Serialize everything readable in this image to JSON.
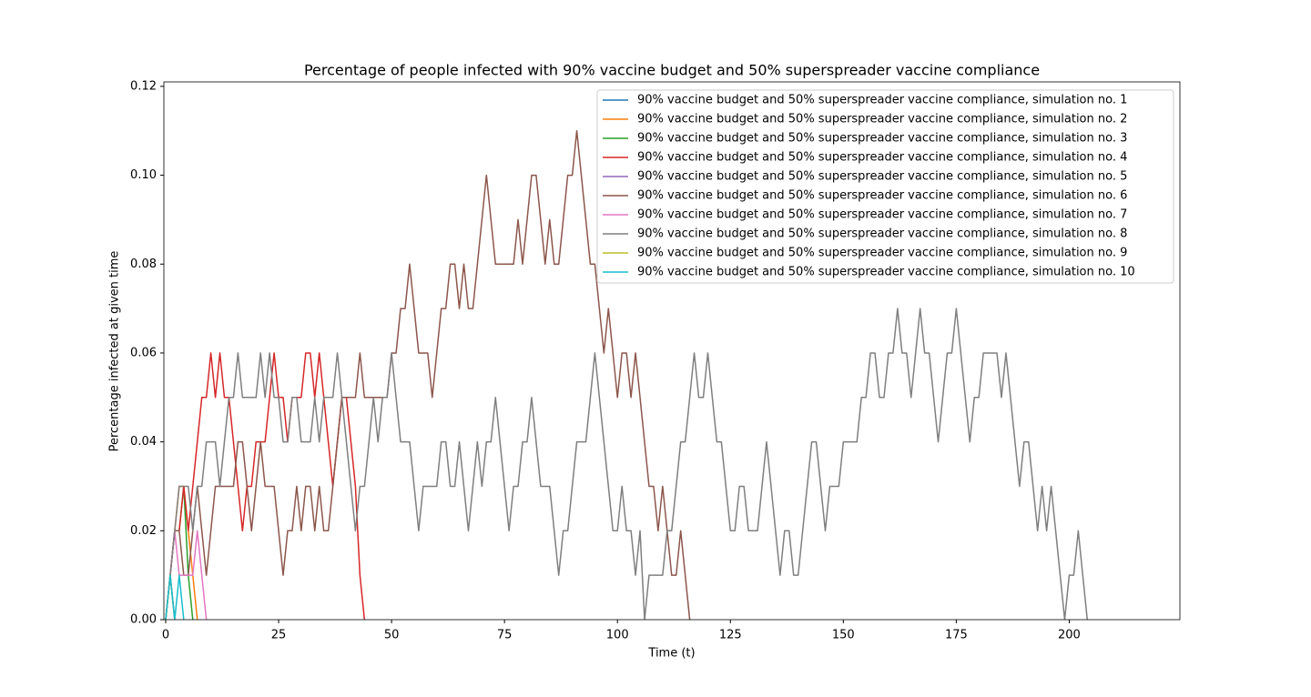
{
  "chart_data": {
    "type": "line",
    "title": "Percentage of people infected with 90% vaccine budget and 50% superspreader vaccine compliance",
    "xlabel": "Time (t)",
    "ylabel": "Percentage infected at given time",
    "xlim": [
      -0.4,
      224.5
    ],
    "ylim": [
      0,
      0.121
    ],
    "xticks": [
      0,
      25,
      50,
      75,
      100,
      125,
      150,
      175,
      200
    ],
    "yticks": [
      {
        "value": 0,
        "label": "0.00"
      },
      0.02,
      0.04,
      0.06,
      0.08,
      {
        "value": 0.1,
        "label": "0.10"
      },
      {
        "value": 0.12,
        "label": "0.12"
      }
    ],
    "legend": "upper right",
    "series": [
      {
        "name": "90% vaccine budget and 50% superspreader vaccine compliance, simulation no. 1",
        "color": "#1f77b4",
        "x": [
          0,
          1,
          2
        ],
        "values": [
          0,
          0.01,
          0
        ]
      },
      {
        "name": "90% vaccine budget and 50% superspreader vaccine compliance, simulation no. 2",
        "color": "#ff7f0e",
        "x": [
          0,
          1,
          2,
          3,
          4,
          5,
          6,
          7
        ],
        "values": [
          0,
          0.01,
          0.02,
          0.03,
          0.03,
          0.02,
          0.01,
          0
        ]
      },
      {
        "name": "90% vaccine budget and 50% superspreader vaccine compliance, simulation no. 3",
        "color": "#2ca02c",
        "x": [
          0,
          1,
          2,
          3,
          4,
          5,
          6
        ],
        "values": [
          0,
          0.01,
          0.02,
          0.02,
          0.03,
          0.01,
          0
        ]
      },
      {
        "name": "90% vaccine budget and 50% superspreader vaccine compliance, simulation no. 4",
        "color": "#d62728",
        "x": [
          0,
          1,
          2,
          3,
          4,
          5,
          6,
          7,
          8,
          9,
          10,
          11,
          12,
          13,
          14,
          15,
          16,
          17,
          18,
          19,
          20,
          21,
          22,
          23,
          24,
          25,
          26,
          27,
          28,
          29,
          30,
          31,
          32,
          33,
          34,
          35,
          36,
          37,
          38,
          39,
          40,
          41,
          42,
          43,
          44
        ],
        "values": [
          0,
          0.01,
          0.02,
          0.02,
          0.03,
          0.02,
          0.03,
          0.04,
          0.05,
          0.05,
          0.06,
          0.05,
          0.06,
          0.05,
          0.05,
          0.04,
          0.03,
          0.02,
          0.03,
          0.03,
          0.04,
          0.04,
          0.04,
          0.05,
          0.06,
          0.05,
          0.05,
          0.04,
          0.05,
          0.05,
          0.05,
          0.06,
          0.06,
          0.05,
          0.06,
          0.05,
          0.04,
          0.03,
          0.04,
          0.05,
          0.05,
          0.04,
          0.03,
          0.01,
          0
        ]
      },
      {
        "name": "90% vaccine budget and 50% superspreader vaccine compliance, simulation no. 5",
        "color": "#9467bd",
        "x": [
          0,
          1,
          2
        ],
        "values": [
          0,
          0.01,
          0
        ]
      },
      {
        "name": "90% vaccine budget and 50% superspreader vaccine compliance, simulation no. 6",
        "color": "#8c564b",
        "x": [
          0,
          1,
          2,
          3,
          4,
          5,
          6,
          7,
          8,
          9,
          10,
          11,
          12,
          13,
          14,
          15,
          16,
          17,
          18,
          19,
          20,
          21,
          22,
          23,
          24,
          25,
          26,
          27,
          28,
          29,
          30,
          31,
          32,
          33,
          34,
          35,
          36,
          37,
          38,
          39,
          40,
          41,
          42,
          43,
          44,
          45,
          46,
          47,
          48,
          49,
          50,
          51,
          52,
          53,
          54,
          55,
          56,
          57,
          58,
          59,
          60,
          61,
          62,
          63,
          64,
          65,
          66,
          67,
          68,
          69,
          70,
          71,
          72,
          73,
          74,
          75,
          76,
          77,
          78,
          79,
          80,
          81,
          82,
          83,
          84,
          85,
          86,
          87,
          88,
          89,
          90,
          91,
          92,
          93,
          94,
          95,
          96,
          97,
          98,
          99,
          100,
          101,
          102,
          103,
          104,
          105,
          106,
          107,
          108,
          109,
          110,
          111,
          112,
          113,
          114,
          115,
          116
        ],
        "values": [
          0,
          0.01,
          0.02,
          0.02,
          0.01,
          0.01,
          0.02,
          0.03,
          0.02,
          0.01,
          0.02,
          0.03,
          0.03,
          0.03,
          0.03,
          0.03,
          0.04,
          0.04,
          0.03,
          0.02,
          0.03,
          0.04,
          0.03,
          0.03,
          0.03,
          0.02,
          0.01,
          0.02,
          0.02,
          0.03,
          0.02,
          0.03,
          0.03,
          0.02,
          0.03,
          0.02,
          0.02,
          0.03,
          0.04,
          0.05,
          0.05,
          0.05,
          0.05,
          0.06,
          0.05,
          0.05,
          0.05,
          0.05,
          0.05,
          0.05,
          0.06,
          0.06,
          0.07,
          0.07,
          0.08,
          0.07,
          0.06,
          0.06,
          0.06,
          0.05,
          0.06,
          0.07,
          0.07,
          0.08,
          0.08,
          0.07,
          0.08,
          0.07,
          0.07,
          0.08,
          0.09,
          0.1,
          0.09,
          0.08,
          0.08,
          0.08,
          0.08,
          0.08,
          0.09,
          0.08,
          0.09,
          0.1,
          0.1,
          0.09,
          0.08,
          0.09,
          0.08,
          0.08,
          0.09,
          0.1,
          0.1,
          0.11,
          0.1,
          0.09,
          0.08,
          0.08,
          0.07,
          0.06,
          0.07,
          0.06,
          0.05,
          0.06,
          0.06,
          0.05,
          0.06,
          0.05,
          0.04,
          0.03,
          0.03,
          0.02,
          0.03,
          0.02,
          0.01,
          0.01,
          0.02,
          0.01,
          0
        ]
      },
      {
        "name": "90% vaccine budget and 50% superspreader vaccine compliance, simulation no. 7",
        "color": "#e377c2",
        "x": [
          0,
          1,
          2,
          3,
          4,
          5,
          6,
          7,
          8,
          9
        ],
        "values": [
          0,
          0.01,
          0.02,
          0.01,
          0.01,
          0.01,
          0.01,
          0.02,
          0.01,
          0
        ]
      },
      {
        "name": "90% vaccine budget and 50% superspreader vaccine compliance, simulation no. 8",
        "color": "#7f7f7f",
        "x": [
          0,
          1,
          2,
          3,
          4,
          5,
          6,
          7,
          8,
          9,
          10,
          11,
          12,
          13,
          14,
          15,
          16,
          17,
          18,
          19,
          20,
          21,
          22,
          23,
          24,
          25,
          26,
          27,
          28,
          29,
          30,
          31,
          32,
          33,
          34,
          35,
          36,
          37,
          38,
          39,
          40,
          41,
          42,
          43,
          44,
          45,
          46,
          47,
          48,
          49,
          50,
          51,
          52,
          53,
          54,
          55,
          56,
          57,
          58,
          59,
          60,
          61,
          62,
          63,
          64,
          65,
          66,
          67,
          68,
          69,
          70,
          71,
          72,
          73,
          74,
          75,
          76,
          77,
          78,
          79,
          80,
          81,
          82,
          83,
          84,
          85,
          86,
          87,
          88,
          89,
          90,
          91,
          92,
          93,
          94,
          95,
          96,
          97,
          98,
          99,
          100,
          101,
          102,
          103,
          104,
          105,
          106,
          107,
          108,
          109,
          110,
          111,
          112,
          113,
          114,
          115,
          116,
          117,
          118,
          119,
          120,
          121,
          122,
          123,
          124,
          125,
          126,
          127,
          128,
          129,
          130,
          131,
          132,
          133,
          134,
          135,
          136,
          137,
          138,
          139,
          140,
          141,
          142,
          143,
          144,
          145,
          146,
          147,
          148,
          149,
          150,
          151,
          152,
          153,
          154,
          155,
          156,
          157,
          158,
          159,
          160,
          161,
          162,
          163,
          164,
          165,
          166,
          167,
          168,
          169,
          170,
          171,
          172,
          173,
          174,
          175,
          176,
          177,
          178,
          179,
          180,
          181,
          182,
          183,
          184,
          185,
          186,
          187,
          188,
          189,
          190,
          191,
          192,
          193,
          194,
          195,
          196,
          197,
          198,
          199,
          200,
          201,
          202,
          203,
          204
        ],
        "values": [
          0,
          0.01,
          0.02,
          0.03,
          0.03,
          0.03,
          0.02,
          0.03,
          0.03,
          0.04,
          0.04,
          0.04,
          0.03,
          0.04,
          0.05,
          0.05,
          0.06,
          0.05,
          0.05,
          0.05,
          0.05,
          0.06,
          0.05,
          0.06,
          0.05,
          0.05,
          0.04,
          0.04,
          0.05,
          0.05,
          0.04,
          0.04,
          0.04,
          0.05,
          0.04,
          0.05,
          0.05,
          0.05,
          0.06,
          0.05,
          0.04,
          0.03,
          0.02,
          0.03,
          0.03,
          0.04,
          0.05,
          0.04,
          0.05,
          0.05,
          0.06,
          0.05,
          0.04,
          0.04,
          0.04,
          0.03,
          0.02,
          0.03,
          0.03,
          0.03,
          0.03,
          0.04,
          0.04,
          0.03,
          0.03,
          0.04,
          0.03,
          0.02,
          0.03,
          0.04,
          0.03,
          0.04,
          0.04,
          0.05,
          0.04,
          0.03,
          0.02,
          0.03,
          0.03,
          0.04,
          0.04,
          0.05,
          0.04,
          0.03,
          0.03,
          0.03,
          0.02,
          0.01,
          0.02,
          0.02,
          0.03,
          0.04,
          0.04,
          0.04,
          0.05,
          0.06,
          0.05,
          0.04,
          0.03,
          0.02,
          0.02,
          0.03,
          0.02,
          0.02,
          0.01,
          0.02,
          0,
          0.01,
          0.01,
          0.01,
          0.01,
          0.02,
          0.02,
          0.03,
          0.04,
          0.04,
          0.05,
          0.06,
          0.05,
          0.05,
          0.06,
          0.05,
          0.04,
          0.04,
          0.03,
          0.02,
          0.02,
          0.03,
          0.03,
          0.02,
          0.02,
          0.02,
          0.03,
          0.04,
          0.03,
          0.02,
          0.01,
          0.02,
          0.02,
          0.01,
          0.01,
          0.02,
          0.03,
          0.04,
          0.04,
          0.03,
          0.02,
          0.03,
          0.03,
          0.03,
          0.04,
          0.04,
          0.04,
          0.04,
          0.05,
          0.05,
          0.06,
          0.06,
          0.05,
          0.05,
          0.06,
          0.06,
          0.07,
          0.06,
          0.06,
          0.05,
          0.06,
          0.07,
          0.06,
          0.06,
          0.05,
          0.04,
          0.05,
          0.06,
          0.06,
          0.07,
          0.06,
          0.05,
          0.04,
          0.05,
          0.05,
          0.06,
          0.06,
          0.06,
          0.06,
          0.05,
          0.06,
          0.05,
          0.04,
          0.03,
          0.04,
          0.04,
          0.03,
          0.02,
          0.03,
          0.02,
          0.03,
          0.02,
          0.01,
          0,
          0.01,
          0.01,
          0.02,
          0.01,
          0
        ]
      },
      {
        "name": "90% vaccine budget and 50% superspreader vaccine compliance, simulation no. 9",
        "color": "#bcbd22",
        "x": [
          0,
          1,
          2
        ],
        "values": [
          0,
          0.01,
          0
        ]
      },
      {
        "name": "90% vaccine budget and 50% superspreader vaccine compliance, simulation no. 10",
        "color": "#17becf",
        "x": [
          0,
          1,
          2,
          3,
          4
        ],
        "values": [
          0,
          0.01,
          0,
          0.01,
          0
        ]
      }
    ]
  }
}
